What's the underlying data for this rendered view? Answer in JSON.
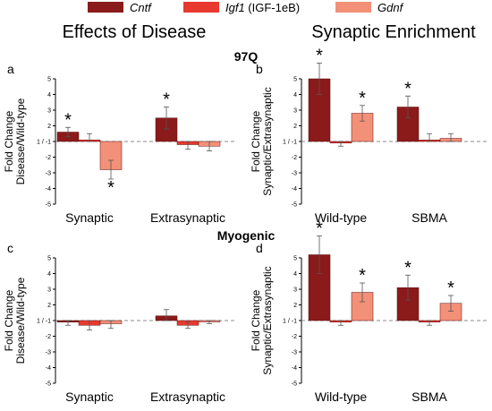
{
  "legend": {
    "items": [
      {
        "name": "Cntf",
        "italic_part": "Cntf",
        "plain_part": "",
        "color": "#8b1a1a"
      },
      {
        "name": "Igf1 (IGF-1eB)",
        "italic_part": "Igf1",
        "plain_part": " (IGF-1eB)",
        "color": "#e8392f"
      },
      {
        "name": "Gdnf",
        "italic_part": "Gdnf",
        "plain_part": "",
        "color": "#f39078"
      }
    ],
    "placement": "top-center"
  },
  "column_titles": {
    "left": "Effects of Disease",
    "right": "Synaptic Enrichment"
  },
  "row_titles": {
    "top": "97Q",
    "bottom": "Myogenic"
  },
  "colors": {
    "cntf": "#8b1a1a",
    "igf1": "#e8392f",
    "gdnf": "#f39078",
    "axis": "#000000",
    "dashed_line": "#666666"
  },
  "chart_data": [
    {
      "type": "bar",
      "panel": "a",
      "ylabel": [
        "Fold Change",
        "Disease/Wild-type"
      ],
      "ylim": [
        -5,
        5
      ],
      "yticks": [
        "5",
        "4",
        "3",
        "2",
        "1 / -1",
        "-2",
        "-3",
        "-4",
        "-5"
      ],
      "categories": [
        "Synaptic",
        "Extrasynaptic"
      ],
      "series": [
        {
          "name": "Cntf",
          "values": [
            1.6,
            2.5
          ],
          "errors": [
            0.3,
            0.7
          ],
          "significant": [
            true,
            true
          ]
        },
        {
          "name": "Igf1 (IGF-1eB)",
          "values": [
            1.1,
            -1.2
          ],
          "errors": [
            0.4,
            0.3
          ],
          "significant": [
            false,
            false
          ]
        },
        {
          "name": "Gdnf",
          "values": [
            -2.8,
            -1.3
          ],
          "errors": [
            0.6,
            0.3
          ],
          "significant": [
            true,
            false
          ]
        }
      ],
      "annotations": [
        "*"
      ]
    },
    {
      "type": "bar",
      "panel": "b",
      "ylabel": [
        "Fold Change",
        "Synaptic/Extrasynaptic"
      ],
      "ylim": [
        -5,
        5
      ],
      "yticks": [
        "5",
        "4",
        "3",
        "2",
        "1 / -1",
        "-2",
        "-3",
        "-4",
        "-5"
      ],
      "categories": [
        "Wild-type",
        "SBMA"
      ],
      "series": [
        {
          "name": "Cntf",
          "values": [
            5.0,
            3.2
          ],
          "errors": [
            1.0,
            0.7
          ],
          "significant": [
            true,
            true
          ]
        },
        {
          "name": "Igf1 (IGF-1eB)",
          "values": [
            -1.1,
            1.1
          ],
          "errors": [
            0.2,
            0.4
          ],
          "significant": [
            false,
            false
          ]
        },
        {
          "name": "Gdnf",
          "values": [
            2.8,
            1.2
          ],
          "errors": [
            0.5,
            0.3
          ],
          "significant": [
            true,
            false
          ]
        }
      ],
      "annotations": [
        "*"
      ]
    },
    {
      "type": "bar",
      "panel": "c",
      "ylabel": [
        "Fold Change",
        "Disease/Wild-type"
      ],
      "ylim": [
        -5,
        5
      ],
      "yticks": [
        "5",
        "4",
        "3",
        "2",
        "1 / -1",
        "-2",
        "-3",
        "-4",
        "-5"
      ],
      "categories": [
        "Synaptic",
        "Extrasynaptic"
      ],
      "series": [
        {
          "name": "Cntf",
          "values": [
            -1.1,
            1.3
          ],
          "errors": [
            0.2,
            0.4
          ],
          "significant": [
            false,
            false
          ]
        },
        {
          "name": "Igf1 (IGF-1eB)",
          "values": [
            -1.3,
            -1.3
          ],
          "errors": [
            0.3,
            0.2
          ],
          "significant": [
            false,
            false
          ]
        },
        {
          "name": "Gdnf",
          "values": [
            -1.2,
            -1.0
          ],
          "errors": [
            0.3,
            0.2
          ],
          "significant": [
            false,
            false
          ]
        }
      ],
      "annotations": []
    },
    {
      "type": "bar",
      "panel": "d",
      "ylabel": [
        "Fold Change",
        "Synaptic/Extrasynaptic"
      ],
      "ylim": [
        -5,
        5
      ],
      "yticks": [
        "5",
        "4",
        "3",
        "2",
        "1 / -1",
        "-2",
        "-3",
        "-4",
        "-5"
      ],
      "categories": [
        "Wild-type",
        "SBMA"
      ],
      "series": [
        {
          "name": "Cntf",
          "values": [
            5.2,
            3.1
          ],
          "errors": [
            1.2,
            0.8
          ],
          "significant": [
            true,
            true
          ]
        },
        {
          "name": "Igf1 (IGF-1eB)",
          "values": [
            -1.1,
            -1.1
          ],
          "errors": [
            0.2,
            0.2
          ],
          "significant": [
            false,
            false
          ]
        },
        {
          "name": "Gdnf",
          "values": [
            2.8,
            2.1
          ],
          "errors": [
            0.6,
            0.5
          ],
          "significant": [
            true,
            true
          ]
        }
      ],
      "annotations": [
        "*"
      ]
    }
  ]
}
